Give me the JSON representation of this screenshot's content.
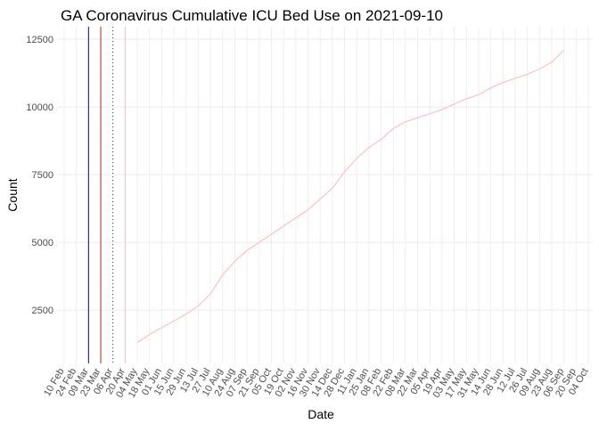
{
  "chart_data": {
    "type": "line",
    "title": "GA Coronavirus Cumulative ICU Bed Use on 2021-09-10",
    "x_label": "Date",
    "y_label": "Count",
    "categories": [
      "10 Feb",
      "24 Feb",
      "09 Mar",
      "23 Mar",
      "06 Apr",
      "20 Apr",
      "04 May",
      "18 May",
      "01 Jun",
      "15 Jun",
      "29 Jun",
      "13 Jul",
      "27 Jul",
      "10 Aug",
      "24 Aug",
      "07 Sep",
      "21 Sep",
      "05 Oct",
      "19 Oct",
      "02 Nov",
      "16 Nov",
      "30 Nov",
      "14 Dec",
      "28 Dec",
      "11 Jan",
      "25 Jan",
      "08 Feb",
      "22 Feb",
      "08 Mar",
      "22 Mar",
      "05 Apr",
      "19 Apr",
      "03 May",
      "17 May",
      "31 May",
      "14 Jun",
      "28 Jun",
      "12 Jul",
      "26 Jul",
      "09 Aug",
      "23 Aug",
      "06 Sep",
      "20 Sep",
      "04 Oct"
    ],
    "series": [
      {
        "color": "#ffb6c1",
        "values": [
          null,
          null,
          null,
          null,
          null,
          null,
          1300,
          1600,
          1850,
          2100,
          2350,
          2650,
          3100,
          3800,
          4300,
          4700,
          5000,
          5300,
          5600,
          5900,
          6200,
          6600,
          7000,
          7600,
          8100,
          8500,
          8800,
          9200,
          9450,
          9600,
          9750,
          9900,
          10100,
          10300,
          10450,
          10700,
          10900,
          11050,
          11200,
          11400,
          11650,
          12100,
          null,
          null
        ]
      }
    ],
    "vlines": [
      {
        "at": "09 Mar",
        "color": "#0000cd",
        "style": "solid"
      },
      {
        "at": "23 Mar",
        "color": "#b22222",
        "style": "solid"
      },
      {
        "at": "06 Apr",
        "color": "#333333",
        "style": "dotted"
      },
      {
        "at": "20 Apr",
        "color": "#ffb6c1",
        "style": "solid"
      }
    ],
    "ylim": [
      530,
      12960
    ],
    "yticks": [
      2500,
      5000,
      7500,
      10000,
      12500
    ],
    "grid": true
  }
}
